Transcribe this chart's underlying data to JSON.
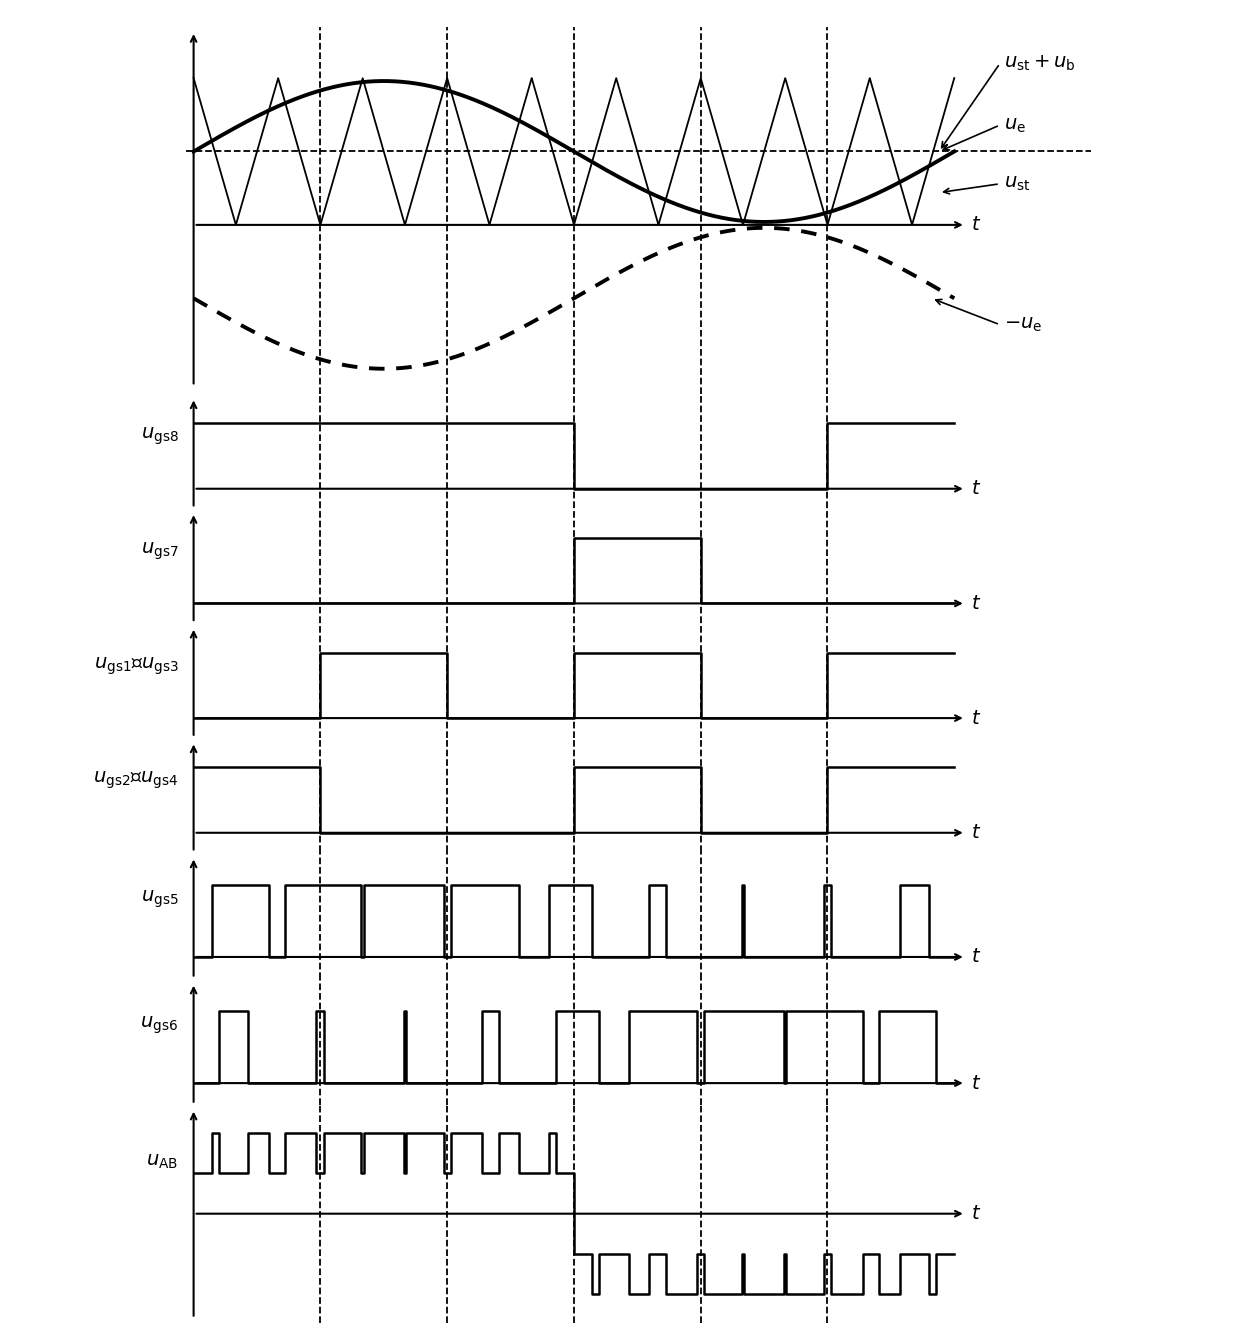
{
  "figsize": [
    12.4,
    13.36
  ],
  "dpi": 100,
  "background": "white",
  "xmax": 1.0,
  "carrier_freq": 9,
  "ue_amp": 0.48,
  "u_st_level": 0.5,
  "dlines": [
    0.1667,
    0.3333,
    0.5,
    0.6667,
    0.8333
  ],
  "height_ratios": [
    3.2,
    1.0,
    1.0,
    1.0,
    1.0,
    1.1,
    1.1,
    1.9
  ],
  "subplot_labels": [
    "",
    "$u_{\\mathrm{gs8}}$",
    "$u_{\\mathrm{gs7}}$",
    "$u_{\\mathrm{gs1}}$、$u_{\\mathrm{gs3}}$",
    "$u_{\\mathrm{gs2}}$、$u_{\\mathrm{gs4}}$",
    "$u_{\\mathrm{gs5}}$",
    "$u_{\\mathrm{gs6}}$",
    "$u_{\\mathrm{AB}}$"
  ],
  "lw_thin": 1.3,
  "lw_thick": 2.8,
  "lw_sq": 1.8,
  "lw_dash": 1.3,
  "label_fontsize": 14
}
